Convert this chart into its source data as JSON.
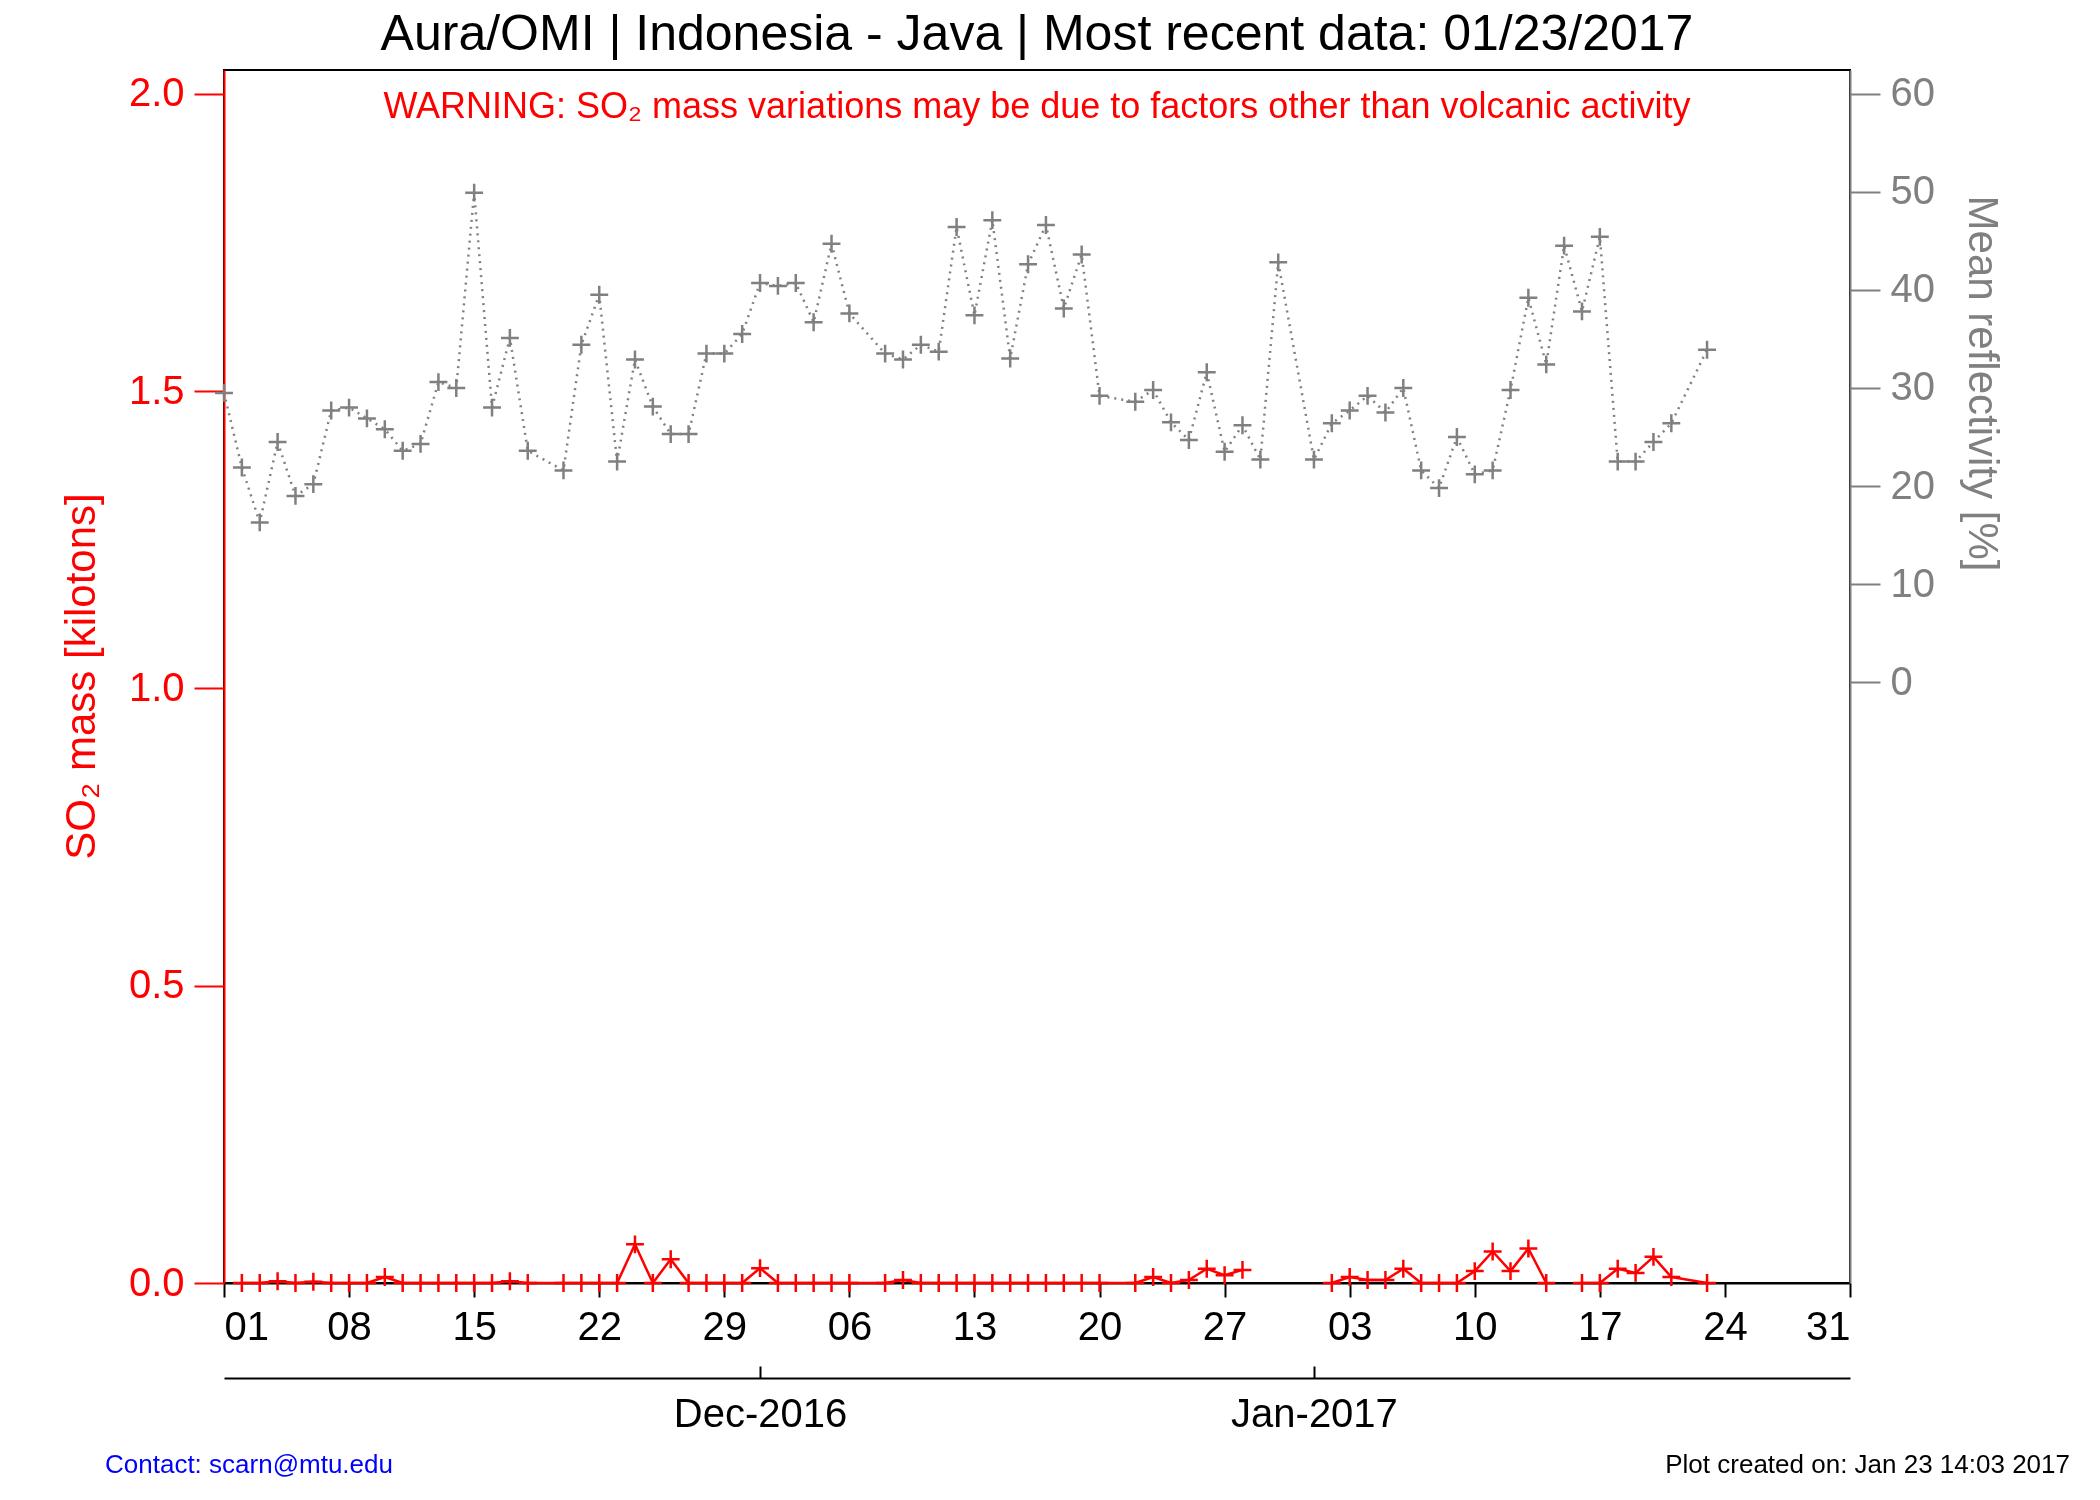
{
  "chart_data": {
    "type": "line",
    "title": "Aura/OMI | Indonesia - Java | Most recent data: 01/23/2017",
    "ylabel": "SO₂ mass [kilotons]",
    "y2label": "Mean reflectivity [%]",
    "annotations": [
      "WARNING: SO₂ mass variations may be due to factors other than volcanic activity",
      "Contact: scarn@mtu.edu",
      "Plot created on: Jan 23 14:03 2017"
    ],
    "x": [
      "2016-11-01",
      "2016-11-02",
      "2016-11-03",
      "2016-11-04",
      "2016-11-05",
      "2016-11-06",
      "2016-11-07",
      "2016-11-08",
      "2016-11-09",
      "2016-11-10",
      "2016-11-11",
      "2016-11-12",
      "2016-11-13",
      "2016-11-14",
      "2016-11-15",
      "2016-11-16",
      "2016-11-17",
      "2016-11-18",
      "2016-11-20",
      "2016-11-21",
      "2016-11-22",
      "2016-11-23",
      "2016-11-24",
      "2016-11-25",
      "2016-11-26",
      "2016-11-27",
      "2016-11-28",
      "2016-11-29",
      "2016-11-30",
      "2016-12-01",
      "2016-12-02",
      "2016-12-03",
      "2016-12-04",
      "2016-12-05",
      "2016-12-06",
      "2016-12-08",
      "2016-12-09",
      "2016-12-10",
      "2016-12-11",
      "2016-12-12",
      "2016-12-13",
      "2016-12-14",
      "2016-12-15",
      "2016-12-16",
      "2016-12-17",
      "2016-12-18",
      "2016-12-19",
      "2016-12-20",
      "2016-12-22",
      "2016-12-23",
      "2016-12-24",
      "2016-12-25",
      "2016-12-26",
      "2016-12-27",
      "2016-12-28",
      "2016-12-29",
      "2016-12-30",
      "2017-01-01",
      "2017-01-02",
      "2017-01-03",
      "2017-01-04",
      "2017-01-05",
      "2017-01-06",
      "2017-01-07",
      "2017-01-08",
      "2017-01-09",
      "2017-01-10",
      "2017-01-11",
      "2017-01-12",
      "2017-01-13",
      "2017-01-14",
      "2017-01-15",
      "2017-01-16",
      "2017-01-17",
      "2017-01-18",
      "2017-01-19",
      "2017-01-20",
      "2017-01-21",
      "2017-01-23"
    ],
    "series": [
      {
        "color": "#ff0000",
        "line_style": "solid",
        "values": [
          null,
          0,
          0,
          0.003,
          0,
          0.002,
          0,
          0,
          0,
          0.01,
          0,
          0,
          0,
          0,
          0,
          0,
          0.003,
          0,
          0,
          0,
          0,
          0,
          0.065,
          0,
          0.04,
          0,
          0,
          0,
          0,
          0.025,
          0,
          0,
          0,
          0,
          0,
          0,
          0.005,
          0,
          0,
          0,
          0,
          0,
          0,
          0,
          0,
          0,
          0,
          0,
          0,
          0.01,
          0,
          0.005,
          0.024,
          0.013,
          0.022,
          null,
          null,
          null,
          0,
          0.01,
          0.005,
          0.005,
          0.024,
          0,
          0,
          0,
          0.02,
          0.053,
          0.02,
          0.058,
          0,
          null,
          0,
          0,
          0.024,
          0.017,
          0.044,
          0.01,
          0
        ]
      },
      {
        "color": "#808080",
        "axis": "y2",
        "line_style": "dotted",
        "values": [
          29.5,
          21.9,
          16.3,
          24.5,
          19,
          20.2,
          27.7,
          28,
          26.9,
          25.8,
          23.6,
          24.3,
          30.6,
          30,
          49.9,
          28,
          35.1,
          23.6,
          21.6,
          34.4,
          39.5,
          22.5,
          32.9,
          28.1,
          25.3,
          25.3,
          33.5,
          33.5,
          35.5,
          40.7,
          40.4,
          40.7,
          36.7,
          44.7,
          37.6,
          33.5,
          32.9,
          34.4,
          33.7,
          46.4,
          37.4,
          47.1,
          33,
          42.6,
          46.6,
          38.1,
          43.6,
          29.2,
          28.6,
          29.8,
          26.5,
          24.7,
          31.6,
          23.5,
          26.2,
          22.7,
          42.8,
          22.7,
          26.4,
          27.7,
          29.2,
          27.5,
          30,
          21.6,
          19.8,
          25,
          21.2,
          21.6,
          29.8,
          39.2,
          32.4,
          44.5,
          37.8,
          45.4,
          22.5,
          22.5,
          24.5,
          26.4,
          33.9
        ]
      }
    ],
    "marker": "cross",
    "xlim": [
      "2016-11-01",
      "2017-01-31"
    ],
    "xticks": [
      {
        "value": "2016-11-01",
        "label": "01"
      },
      {
        "value": "2016-11-08",
        "label": "08"
      },
      {
        "value": "2016-11-15",
        "label": "15"
      },
      {
        "value": "2016-11-22",
        "label": "22"
      },
      {
        "value": "2016-11-29",
        "label": "29"
      },
      {
        "value": "2016-12-06",
        "label": "06"
      },
      {
        "value": "2016-12-13",
        "label": "13"
      },
      {
        "value": "2016-12-20",
        "label": "20"
      },
      {
        "value": "2016-12-27",
        "label": "27"
      },
      {
        "value": "2017-01-03",
        "label": "03"
      },
      {
        "value": "2017-01-10",
        "label": "10"
      },
      {
        "value": "2017-01-17",
        "label": "17"
      },
      {
        "value": "2017-01-24",
        "label": "24"
      },
      {
        "value": "2017-01-31",
        "label": "31"
      }
    ],
    "x2lim": [
      "2016-11-01",
      "2017-01-31"
    ],
    "x2ticks": [
      {
        "value": "2016-12-01",
        "label": "Dec-2016"
      },
      {
        "value": "2017-01-01",
        "label": "Jan-2017"
      }
    ],
    "ylim": [
      0,
      2.04
    ],
    "yticks": [
      {
        "value": 0,
        "label": "0.0"
      },
      {
        "value": 0.5,
        "label": "0.5"
      },
      {
        "value": 1,
        "label": "1.0"
      },
      {
        "value": 1.5,
        "label": "1.5"
      },
      {
        "value": 2,
        "label": "2.0"
      }
    ],
    "y2lim": [
      -61.2,
      62.4
    ],
    "y2ticks": [
      0,
      10,
      20,
      30,
      40,
      50,
      60
    ],
    "grid": false
  }
}
